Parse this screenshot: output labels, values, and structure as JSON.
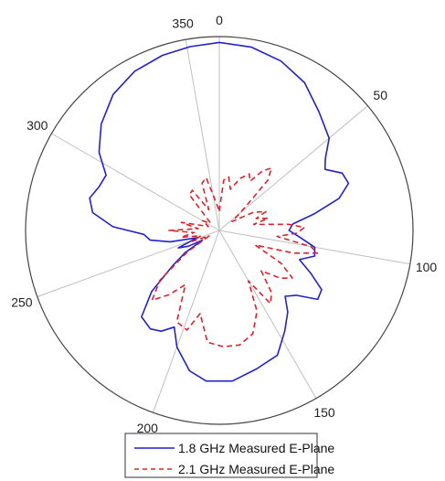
{
  "chart_data": {
    "type": "polar-line",
    "angular_direction": "clockwise",
    "zero_location": "top",
    "theta_ticks": [
      "0",
      "50",
      "100",
      "150",
      "200",
      "250",
      "300",
      "350"
    ],
    "theta_tick_values": [
      0,
      50,
      100,
      150,
      200,
      250,
      300,
      350
    ],
    "r_range": [
      0,
      1
    ],
    "grid": true,
    "legend_position": "bottom",
    "colors": {
      "series_1": "#2222cc",
      "series_2": "#e0202a",
      "axis": "#444444",
      "grid": "#bfbfbf"
    },
    "series": [
      {
        "name": "1.8 GHz Measured E-Plane",
        "color": "#2222cc",
        "style": "solid",
        "points": [
          [
            0,
            0.97
          ],
          [
            10,
            0.96
          ],
          [
            20,
            0.93
          ],
          [
            30,
            0.88
          ],
          [
            40,
            0.8
          ],
          [
            50,
            0.74
          ],
          [
            56,
            0.66
          ],
          [
            60,
            0.63
          ],
          [
            65,
            0.7
          ],
          [
            70,
            0.71
          ],
          [
            75,
            0.64
          ],
          [
            80,
            0.5
          ],
          [
            85,
            0.38
          ],
          [
            90,
            0.36
          ],
          [
            95,
            0.42
          ],
          [
            100,
            0.5
          ],
          [
            105,
            0.51
          ],
          [
            110,
            0.44
          ],
          [
            115,
            0.52
          ],
          [
            120,
            0.61
          ],
          [
            125,
            0.62
          ],
          [
            130,
            0.52
          ],
          [
            135,
            0.48
          ],
          [
            140,
            0.55
          ],
          [
            147,
            0.62
          ],
          [
            155,
            0.71
          ],
          [
            165,
            0.74
          ],
          [
            175,
            0.78
          ],
          [
            185,
            0.78
          ],
          [
            192,
            0.74
          ],
          [
            200,
            0.64
          ],
          [
            205,
            0.55
          ],
          [
            210,
            0.6
          ],
          [
            215,
            0.62
          ],
          [
            222,
            0.6
          ],
          [
            228,
            0.47
          ],
          [
            233,
            0.3
          ],
          [
            237,
            0.21
          ],
          [
            240,
            0.1
          ],
          [
            243,
            0.18
          ],
          [
            247,
            0.23
          ],
          [
            252,
            0.12
          ],
          [
            257,
            0.26
          ],
          [
            262,
            0.36
          ],
          [
            267,
            0.39
          ],
          [
            272,
            0.55
          ],
          [
            278,
            0.66
          ],
          [
            284,
            0.69
          ],
          [
            290,
            0.66
          ],
          [
            296,
            0.65
          ],
          [
            303,
            0.74
          ],
          [
            312,
            0.82
          ],
          [
            322,
            0.89
          ],
          [
            332,
            0.93
          ],
          [
            342,
            0.95
          ],
          [
            351,
            0.96
          ],
          [
            360,
            0.97
          ]
        ]
      },
      {
        "name": "2.1 GHz Measured E-Plane",
        "color": "#e0202a",
        "style": "dashed",
        "points": [
          [
            0,
            0.1
          ],
          [
            5,
            0.26
          ],
          [
            10,
            0.28
          ],
          [
            15,
            0.22
          ],
          [
            22,
            0.29
          ],
          [
            28,
            0.33
          ],
          [
            32,
            0.3
          ],
          [
            36,
            0.38
          ],
          [
            40,
            0.42
          ],
          [
            44,
            0.36
          ],
          [
            48,
            0.18
          ],
          [
            55,
            0.08
          ],
          [
            62,
            0.2
          ],
          [
            68,
            0.26
          ],
          [
            72,
            0.2
          ],
          [
            76,
            0.26
          ],
          [
            80,
            0.18
          ],
          [
            85,
            0.36
          ],
          [
            88,
            0.44
          ],
          [
            92,
            0.4
          ],
          [
            96,
            0.3
          ],
          [
            100,
            0.48
          ],
          [
            103,
            0.52
          ],
          [
            107,
            0.4
          ],
          [
            112,
            0.2
          ],
          [
            118,
            0.36
          ],
          [
            123,
            0.45
          ],
          [
            128,
            0.4
          ],
          [
            134,
            0.3
          ],
          [
            140,
            0.42
          ],
          [
            145,
            0.46
          ],
          [
            150,
            0.3
          ],
          [
            155,
            0.46
          ],
          [
            162,
            0.56
          ],
          [
            170,
            0.6
          ],
          [
            178,
            0.6
          ],
          [
            186,
            0.58
          ],
          [
            193,
            0.44
          ],
          [
            198,
            0.54
          ],
          [
            205,
            0.52
          ],
          [
            212,
            0.33
          ],
          [
            218,
            0.42
          ],
          [
            224,
            0.5
          ],
          [
            230,
            0.4
          ],
          [
            236,
            0.2
          ],
          [
            242,
            0.06
          ],
          [
            248,
            0.15
          ],
          [
            254,
            0.1
          ],
          [
            260,
            0.2
          ],
          [
            265,
            0.13
          ],
          [
            270,
            0.26
          ],
          [
            275,
            0.11
          ],
          [
            282,
            0.2
          ],
          [
            290,
            0.06
          ],
          [
            300,
            0.1
          ],
          [
            310,
            0.06
          ],
          [
            320,
            0.24
          ],
          [
            326,
            0.25
          ],
          [
            333,
            0.12
          ],
          [
            340,
            0.26
          ],
          [
            346,
            0.28
          ],
          [
            352,
            0.16
          ],
          [
            360,
            0.1
          ]
        ]
      }
    ]
  }
}
